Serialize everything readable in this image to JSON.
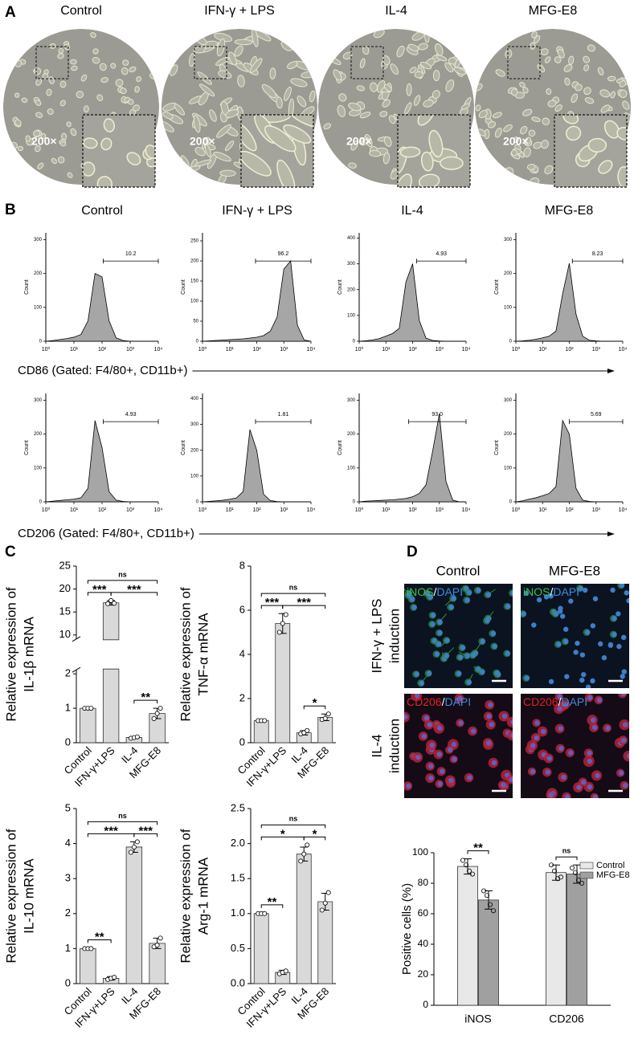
{
  "panel_labels": [
    "A",
    "B",
    "C",
    "D"
  ],
  "panel_a": {
    "titles": [
      "Control",
      "IFN-γ + LPS",
      "IL-4",
      "MFG-E8"
    ],
    "magnification": [
      "200×",
      "200×",
      "200×",
      "200×"
    ]
  },
  "panel_b": {
    "titles": [
      "Control",
      "IFN-γ + LPS",
      "IL-4",
      "MFG-E8"
    ],
    "rows": [
      {
        "axis_label": "CD86 (Gated: F4/80+, CD11b+)"
      },
      {
        "axis_label": "CD206 (Gated: F4/80+, CD11b+)"
      }
    ]
  },
  "panel_d": {
    "columns": [
      "Control",
      "MFG-E8"
    ],
    "rows": [
      [
        "IFN-γ + LPS",
        "induction"
      ],
      [
        "IL-4",
        "induction"
      ]
    ],
    "stains": [
      [
        "iNOS",
        "/",
        "DAPI"
      ],
      [
        "CD206",
        "/",
        "DAPI"
      ]
    ]
  },
  "chart_data": [
    {
      "type": "area",
      "ylabel": "Count",
      "xlog": true,
      "color": "#a6a6a6",
      "x": [
        1,
        1.78,
        3.16,
        5.62,
        10,
        17.8,
        31.6,
        56.2,
        100,
        178,
        316,
        562,
        1000,
        1778,
        3162,
        5623,
        10000
      ],
      "values": [
        0,
        2,
        5,
        8,
        12,
        20,
        60,
        200,
        190,
        60,
        10,
        2,
        0,
        0,
        0,
        0,
        0
      ],
      "xlim": [
        1,
        10000
      ],
      "xticks": [
        {
          "value": 1,
          "label": "10⁰"
        },
        {
          "value": 10,
          "label": "10¹"
        },
        {
          "value": 100,
          "label": "10²"
        },
        {
          "value": 1000,
          "label": "10³"
        },
        {
          "value": 10000,
          "label": "10⁴"
        }
      ],
      "ylim": [
        0,
        320
      ],
      "yticks": [
        0,
        100,
        200,
        300
      ],
      "gate": {
        "range": [
          110,
          10000
        ],
        "label": "10.2"
      }
    },
    {
      "type": "area",
      "ylabel": "Count",
      "xlog": true,
      "color": "#a6a6a6",
      "x": [
        1,
        1.78,
        3.16,
        5.62,
        10,
        17.8,
        31.6,
        56.2,
        100,
        178,
        316,
        562,
        1000,
        1778,
        3162,
        5623,
        10000
      ],
      "values": [
        0,
        1,
        2,
        3,
        4,
        5,
        6,
        8,
        10,
        14,
        25,
        60,
        180,
        200,
        40,
        3,
        0
      ],
      "xlim": [
        1,
        10000
      ],
      "xticks": [
        {
          "value": 1,
          "label": "10⁰"
        },
        {
          "value": 10,
          "label": "10¹"
        },
        {
          "value": 100,
          "label": "10²"
        },
        {
          "value": 1000,
          "label": "10³"
        },
        {
          "value": 10000,
          "label": "10⁴"
        }
      ],
      "ylim": [
        0,
        270
      ],
      "yticks": [
        0,
        50,
        100,
        150,
        200,
        250
      ],
      "gate": {
        "range": [
          90,
          10000
        ],
        "label": "96.2"
      }
    },
    {
      "type": "area",
      "ylabel": "Count",
      "xlog": true,
      "color": "#a6a6a6",
      "x": [
        1,
        1.78,
        3.16,
        5.62,
        10,
        17.8,
        31.6,
        56.2,
        100,
        178,
        316,
        562,
        1000,
        1778,
        3162,
        5623,
        10000
      ],
      "values": [
        0,
        2,
        5,
        10,
        20,
        30,
        50,
        230,
        300,
        80,
        12,
        3,
        1,
        0,
        0,
        0,
        0
      ],
      "xlim": [
        1,
        10000
      ],
      "xticks": [
        {
          "value": 1,
          "label": "10⁰"
        },
        {
          "value": 10,
          "label": "10¹"
        },
        {
          "value": 100,
          "label": "10²"
        },
        {
          "value": 1000,
          "label": "10³"
        },
        {
          "value": 10000,
          "label": "10⁴"
        }
      ],
      "ylim": [
        0,
        420
      ],
      "yticks": [
        0,
        100,
        200,
        300,
        400
      ],
      "gate": {
        "range": [
          140,
          10000
        ],
        "label": "4.93"
      }
    },
    {
      "type": "area",
      "ylabel": "Count",
      "xlog": true,
      "color": "#a6a6a6",
      "x": [
        1,
        1.78,
        3.16,
        5.62,
        10,
        17.8,
        31.6,
        56.2,
        100,
        178,
        316,
        562,
        1000,
        1778,
        3162,
        5623,
        10000
      ],
      "values": [
        0,
        1,
        3,
        6,
        10,
        15,
        30,
        140,
        230,
        80,
        15,
        3,
        1,
        0,
        0,
        0,
        0
      ],
      "xlim": [
        1,
        10000
      ],
      "xticks": [
        {
          "value": 1,
          "label": "10⁰"
        },
        {
          "value": 10,
          "label": "10¹"
        },
        {
          "value": 100,
          "label": "10²"
        },
        {
          "value": 1000,
          "label": "10³"
        },
        {
          "value": 10000,
          "label": "10⁴"
        }
      ],
      "ylim": [
        0,
        320
      ],
      "yticks": [
        0,
        100,
        200,
        300
      ],
      "gate": {
        "range": [
          130,
          10000
        ],
        "label": "8.23"
      }
    },
    {
      "type": "area",
      "ylabel": "Count",
      "xlog": true,
      "color": "#a6a6a6",
      "x": [
        1,
        1.78,
        3.16,
        5.62,
        10,
        17.8,
        31.6,
        56.2,
        100,
        178,
        316,
        562,
        1000,
        1778,
        3162,
        5623,
        10000
      ],
      "values": [
        0,
        2,
        4,
        6,
        8,
        12,
        40,
        240,
        160,
        30,
        5,
        1,
        0,
        0,
        0,
        0,
        0
      ],
      "xlim": [
        1,
        10000
      ],
      "xticks": [
        {
          "value": 1,
          "label": "10⁰"
        },
        {
          "value": 10,
          "label": "10¹"
        },
        {
          "value": 100,
          "label": "10²"
        },
        {
          "value": 1000,
          "label": "10³"
        },
        {
          "value": 10000,
          "label": "10⁴"
        }
      ],
      "ylim": [
        0,
        320
      ],
      "yticks": [
        0,
        100,
        200,
        300
      ],
      "gate": {
        "range": [
          110,
          10000
        ],
        "label": "4.93"
      }
    },
    {
      "type": "area",
      "ylabel": "Count",
      "xlog": true,
      "color": "#a6a6a6",
      "x": [
        1,
        1.78,
        3.16,
        5.62,
        10,
        17.8,
        31.6,
        56.2,
        100,
        178,
        316,
        562,
        1000,
        1778,
        3162,
        5623,
        10000
      ],
      "values": [
        0,
        2,
        4,
        6,
        10,
        15,
        40,
        280,
        200,
        30,
        5,
        1,
        0,
        0,
        0,
        0,
        0
      ],
      "xlim": [
        1,
        10000
      ],
      "xticks": [
        {
          "value": 1,
          "label": "10⁰"
        },
        {
          "value": 10,
          "label": "10¹"
        },
        {
          "value": 100,
          "label": "10²"
        },
        {
          "value": 1000,
          "label": "10³"
        },
        {
          "value": 10000,
          "label": "10⁴"
        }
      ],
      "ylim": [
        0,
        420
      ],
      "yticks": [
        0,
        100,
        200,
        300,
        400
      ],
      "gate": {
        "range": [
          90,
          10000
        ],
        "label": "1.81"
      }
    },
    {
      "type": "area",
      "ylabel": "Count",
      "xlog": true,
      "color": "#a6a6a6",
      "x": [
        1,
        1.78,
        3.16,
        5.62,
        10,
        17.8,
        31.6,
        56.2,
        100,
        178,
        316,
        562,
        1000,
        1778,
        3162,
        5623,
        10000
      ],
      "values": [
        0,
        2,
        3,
        4,
        5,
        6,
        8,
        10,
        15,
        25,
        50,
        150,
        260,
        60,
        5,
        0,
        0
      ],
      "xlim": [
        1,
        10000
      ],
      "xticks": [
        {
          "value": 1,
          "label": "10⁰"
        },
        {
          "value": 10,
          "label": "10¹"
        },
        {
          "value": 100,
          "label": "10²"
        },
        {
          "value": 1000,
          "label": "10³"
        },
        {
          "value": 10000,
          "label": "10⁴"
        }
      ],
      "ylim": [
        0,
        320
      ],
      "yticks": [
        0,
        100,
        200,
        300
      ],
      "gate": {
        "range": [
          70,
          10000
        ],
        "label": "93.0"
      }
    },
    {
      "type": "area",
      "ylabel": "Count",
      "xlog": true,
      "color": "#a6a6a6",
      "x": [
        1,
        1.78,
        3.16,
        5.62,
        10,
        17.8,
        31.6,
        56.2,
        100,
        178,
        316,
        562,
        1000,
        1778,
        3162,
        5623,
        10000
      ],
      "values": [
        0,
        3,
        8,
        12,
        18,
        25,
        45,
        240,
        200,
        40,
        5,
        1,
        0,
        0,
        0,
        0,
        0
      ],
      "xlim": [
        1,
        10000
      ],
      "xticks": [
        {
          "value": 1,
          "label": "10⁰"
        },
        {
          "value": 10,
          "label": "10¹"
        },
        {
          "value": 100,
          "label": "10²"
        },
        {
          "value": 1000,
          "label": "10³"
        },
        {
          "value": 10000,
          "label": "10⁴"
        }
      ],
      "ylim": [
        0,
        320
      ],
      "yticks": [
        0,
        100,
        200,
        300
      ],
      "gate": {
        "range": [
          100,
          10000
        ],
        "label": "5.69"
      }
    },
    {
      "type": "bar",
      "ylabel": [
        "Relative expression of",
        "IL-1β mRNA"
      ],
      "color": "#d9d9d9",
      "categories": [
        "Control",
        "IFN-γ+LPS",
        "IL-4",
        "MFG-E8"
      ],
      "values": [
        1.0,
        17.0,
        0.15,
        0.85
      ],
      "errors": [
        0.02,
        0.5,
        0.02,
        0.15
      ],
      "points": [
        [
          1,
          1,
          1
        ],
        [
          16.8,
          17.5,
          16.9
        ],
        [
          0.13,
          0.15,
          0.17
        ],
        [
          0.7,
          0.85,
          1.0
        ]
      ],
      "ylim": [
        0,
        25
      ],
      "yticks": [
        0,
        1,
        2,
        10,
        15,
        20,
        25
      ],
      "axis_break": [
        2,
        10
      ],
      "brackets": [
        {
          "between": [
            0,
            1
          ],
          "label": "***"
        },
        {
          "between": [
            2,
            3
          ],
          "label": "**"
        },
        {
          "between": [
            1,
            3
          ],
          "label": "***"
        },
        {
          "between": [
            0,
            3
          ],
          "label": "ns"
        }
      ]
    },
    {
      "type": "bar",
      "ylabel": [
        "Relative expression of",
        "TNF-α mRNA"
      ],
      "color": "#d9d9d9",
      "categories": [
        "Control",
        "IFN-γ+LPS",
        "IL-4",
        "MFG-E8"
      ],
      "values": [
        1.0,
        5.4,
        0.45,
        1.15
      ],
      "errors": [
        0.02,
        0.45,
        0.1,
        0.15
      ],
      "points": [
        [
          1,
          1,
          1
        ],
        [
          5.0,
          5.4,
          5.8
        ],
        [
          0.4,
          0.45,
          0.55
        ],
        [
          1.05,
          1.1,
          1.3
        ]
      ],
      "ylim": [
        0,
        8
      ],
      "yticks": [
        0,
        2,
        4,
        6,
        8
      ],
      "brackets": [
        {
          "between": [
            0,
            1
          ],
          "label": "***"
        },
        {
          "between": [
            2,
            3
          ],
          "label": "*"
        },
        {
          "between": [
            1,
            3
          ],
          "label": "***"
        },
        {
          "between": [
            0,
            3
          ],
          "label": "ns"
        }
      ]
    },
    {
      "type": "bar",
      "ylabel": [
        "Relative expression of",
        "IL-10 mRNA"
      ],
      "color": "#d9d9d9",
      "categories": [
        "Control",
        "IFN-γ+LPS",
        "IL-4",
        "MFG-E8"
      ],
      "values": [
        1.0,
        0.15,
        3.9,
        1.15
      ],
      "errors": [
        0.02,
        0.05,
        0.15,
        0.15
      ],
      "points": [
        [
          1,
          1,
          1
        ],
        [
          0.12,
          0.15,
          0.18
        ],
        [
          3.75,
          3.9,
          4.05
        ],
        [
          1.05,
          1.1,
          1.3
        ]
      ],
      "ylim": [
        0,
        5
      ],
      "yticks": [
        0,
        1,
        2,
        3,
        4,
        5
      ],
      "brackets": [
        {
          "between": [
            0,
            1
          ],
          "label": "**"
        },
        {
          "between": [
            0,
            2
          ],
          "label": "***"
        },
        {
          "between": [
            2,
            3
          ],
          "label": "***"
        },
        {
          "between": [
            0,
            3
          ],
          "label": "ns"
        }
      ]
    },
    {
      "type": "bar",
      "ylabel": [
        "Relative expression of",
        "Arg-1 mRNA"
      ],
      "color": "#d9d9d9",
      "categories": [
        "Control",
        "IFN-γ+LPS",
        "IL-4",
        "MFG-E8"
      ],
      "values": [
        1.0,
        0.16,
        1.85,
        1.17
      ],
      "errors": [
        0.01,
        0.03,
        0.1,
        0.12
      ],
      "points": [
        [
          1,
          1,
          1
        ],
        [
          0.14,
          0.16,
          0.18
        ],
        [
          1.75,
          1.85,
          1.98
        ],
        [
          1.05,
          1.15,
          1.3
        ]
      ],
      "ylim": [
        0,
        2.5
      ],
      "yticks": [
        {
          "value": 0,
          "label": "0.0"
        },
        0.5,
        {
          "value": 1,
          "label": "1.0"
        },
        1.5,
        {
          "value": 2,
          "label": "2.0"
        },
        2.5
      ],
      "brackets": [
        {
          "between": [
            0,
            1
          ],
          "label": "**"
        },
        {
          "between": [
            0,
            2
          ],
          "label": "*"
        },
        {
          "between": [
            2,
            3
          ],
          "label": "*"
        },
        {
          "between": [
            0,
            3
          ],
          "label": "ns"
        }
      ]
    },
    {
      "type": "grouped_bar",
      "ylabel": "Positive cells (%)",
      "categories": [
        "iNOS",
        "CD206"
      ],
      "series": [
        {
          "name": "Control",
          "color": "#e8e8e8",
          "values": [
            91,
            87
          ],
          "errors": [
            5,
            5
          ],
          "points": [
            [
              95,
              92,
              88,
              86
            ],
            [
              92,
              88,
              83,
              84
            ]
          ]
        },
        {
          "name": "MFG-E8",
          "color": "#a0a0a0",
          "values": [
            69,
            86
          ],
          "errors": [
            6,
            6
          ],
          "points": [
            [
              75,
              72,
              66,
              62
            ],
            [
              90,
              87,
              82,
              80
            ]
          ]
        }
      ],
      "ylim": [
        0,
        100
      ],
      "yticks": [
        0,
        20,
        40,
        60,
        80,
        100
      ],
      "legend": "upper right",
      "brackets": [
        {
          "category": 0,
          "label": "**"
        },
        {
          "category": 1,
          "label": "ns"
        }
      ]
    }
  ]
}
